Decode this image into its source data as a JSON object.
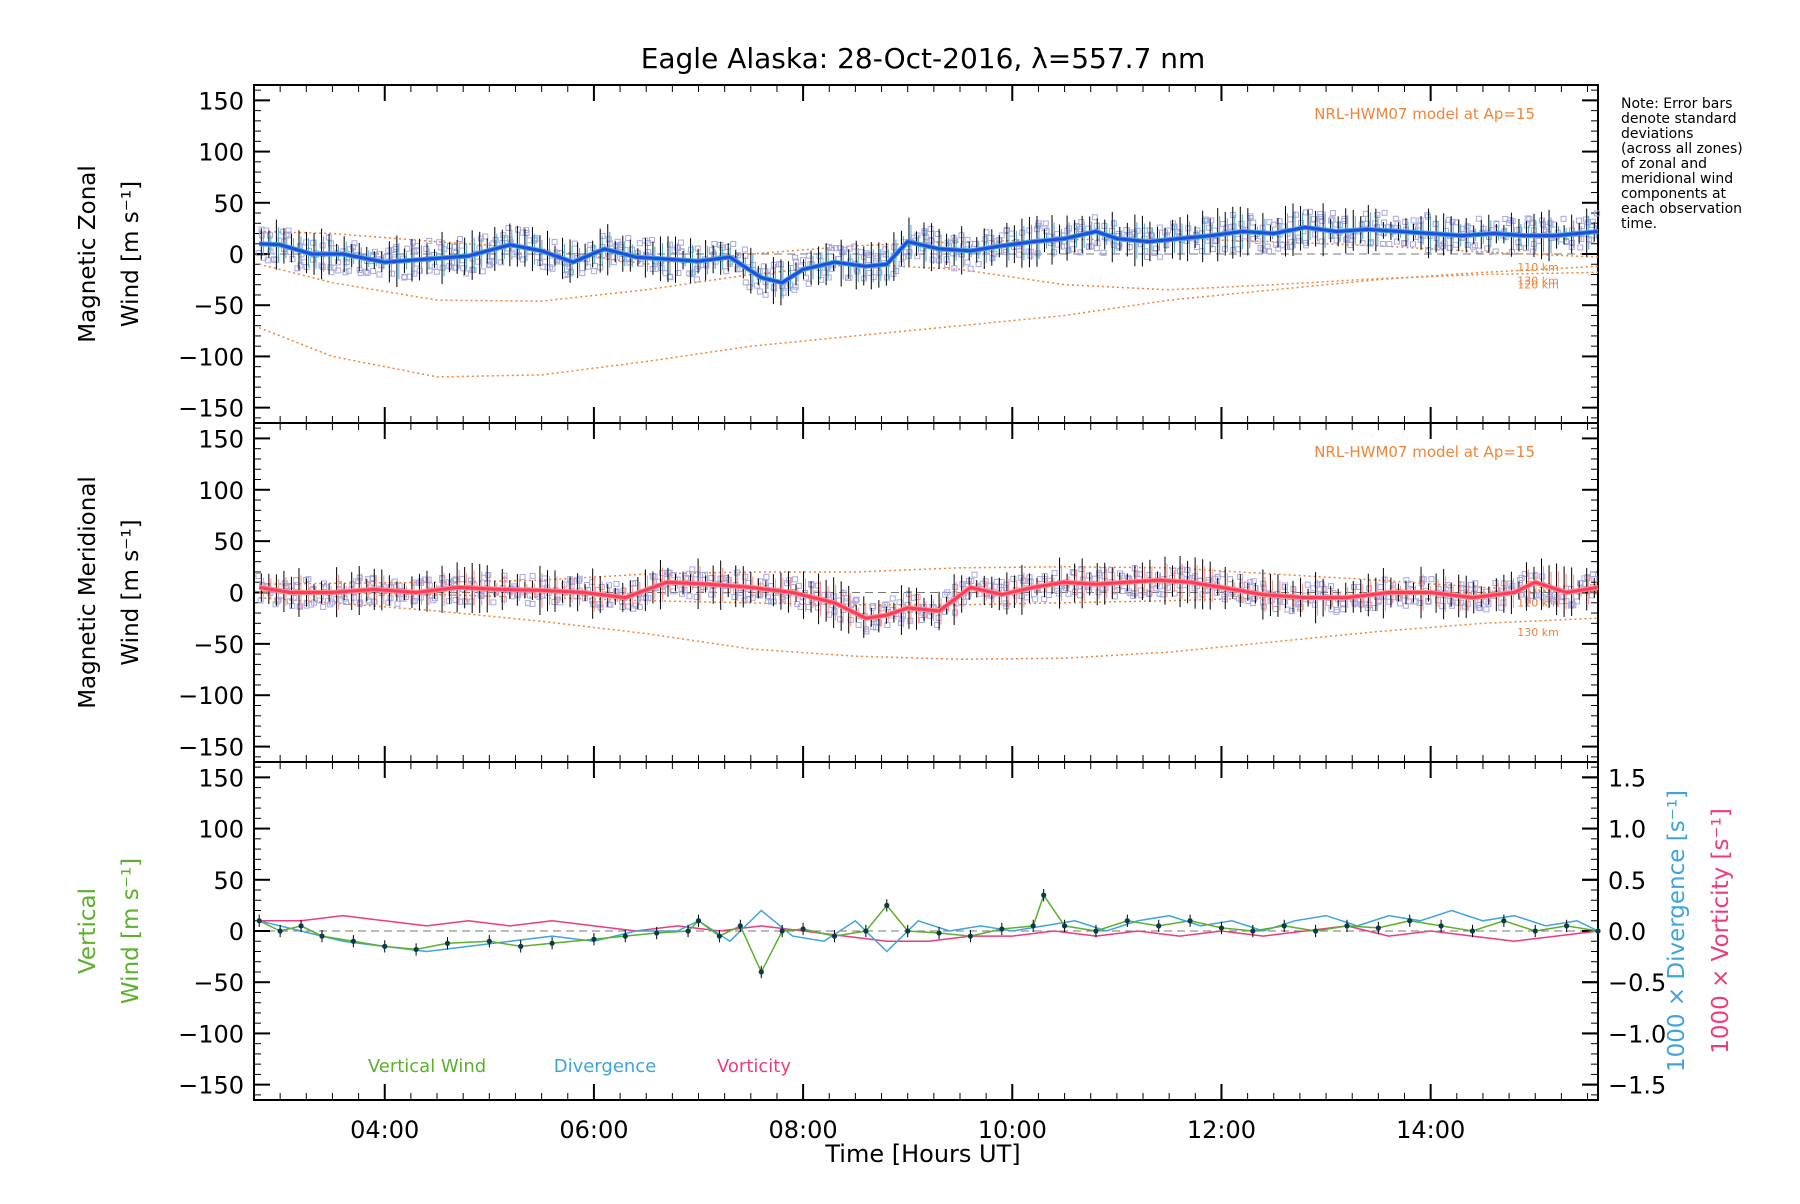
{
  "chart_data": {
    "type": "line",
    "title": "Eagle Alaska: 28-Oct-2016, λ=557.7 nm",
    "xlabel": "Time [Hours UT]",
    "x_ticks": [
      "04:00",
      "06:00",
      "08:00",
      "10:00",
      "12:00",
      "14:00"
    ],
    "x_range_hours": [
      2.75,
      15.6
    ],
    "note": "Note: Error bars denote standard deviations (across all zones) of zonal and meridional wind components at each observation time.",
    "note_lines": [
      "Note: Error bars",
      "denote standard",
      "deviations",
      "(across all zones)",
      "of zonal and",
      "meridional wind",
      "components at",
      "each observation",
      "time."
    ],
    "colors": {
      "zonal": "#1a4fe0",
      "zonal_light": "#4aa3df",
      "meridional": "#ff3b5c",
      "meridional_light": "#ff8a8a",
      "model": "#f0843a",
      "scatter": "#a8a8e0",
      "vertical": "#5cb02b",
      "divergence": "#3fa4dc",
      "vorticity": "#ee3b7f",
      "error_bar": "#000000"
    },
    "panels": [
      {
        "id": "zonal",
        "ylabel_line1": "Magnetic Zonal",
        "ylabel_line2": "Wind [m s⁻¹]",
        "ylim": [
          -165,
          165
        ],
        "y_ticks": [
          "150",
          "100",
          "50",
          "0",
          "−50",
          "−100",
          "−150"
        ],
        "model_label": "NRL-HWM07 model at Ap=15",
        "model_altitudes": [
          "110 km",
          "120 km",
          "130 km"
        ],
        "series": [
          {
            "role": "wind",
            "x": [
              2.8,
              3.0,
              3.3,
              3.6,
              4.0,
              4.4,
              4.8,
              5.2,
              5.5,
              5.8,
              6.1,
              6.4,
              6.7,
              7.0,
              7.3,
              7.6,
              7.8,
              8.0,
              8.3,
              8.6,
              8.8,
              9.0,
              9.3,
              9.6,
              9.9,
              10.2,
              10.5,
              10.8,
              11.0,
              11.3,
              11.6,
              11.9,
              12.2,
              12.5,
              12.8,
              13.1,
              13.4,
              13.7,
              14.0,
              14.3,
              14.6,
              14.9,
              15.2,
              15.6
            ],
            "y": [
              10,
              9,
              0,
              0,
              -8,
              -5,
              -2,
              9,
              3,
              -8,
              5,
              -3,
              -5,
              -7,
              -3,
              -23,
              -28,
              -15,
              -8,
              -12,
              -10,
              12,
              5,
              3,
              8,
              12,
              15,
              22,
              15,
              12,
              15,
              18,
              22,
              20,
              26,
              22,
              24,
              22,
              20,
              18,
              20,
              18,
              18,
              22
            ]
          }
        ],
        "model_curves": [
          {
            "x": [
              2.8,
              3.5,
              4.5,
              5.5,
              6.5,
              7.5,
              8.5,
              9.5,
              10.5,
              11.5,
              12.5,
              13.5,
              14.5,
              15.6
            ],
            "y": [
              22,
              20,
              12,
              5,
              -10,
              0,
              8,
              12,
              14,
              15,
              12,
              8,
              2,
              -3
            ]
          },
          {
            "x": [
              2.8,
              3.5,
              4.5,
              5.5,
              6.5,
              7.5,
              8.5,
              9.5,
              10.5,
              11.5,
              12.5,
              13.5,
              14.5,
              15.6
            ],
            "y": [
              -10,
              -28,
              -45,
              -46,
              -35,
              -20,
              -10,
              -15,
              -30,
              -35,
              -30,
              -24,
              -20,
              -18
            ]
          },
          {
            "x": [
              2.8,
              3.5,
              4.5,
              5.5,
              6.5,
              7.5,
              8.5,
              9.5,
              10.5,
              11.5,
              12.5,
              13.5,
              14.5,
              15.6
            ],
            "y": [
              -72,
              -100,
              -120,
              -118,
              -105,
              -90,
              -80,
              -70,
              -60,
              -45,
              -35,
              -25,
              -18,
              -12
            ]
          }
        ]
      },
      {
        "id": "meridional",
        "ylabel_line1": "Magnetic Meridional",
        "ylabel_line2": "Wind [m s⁻¹]",
        "ylim": [
          -165,
          165
        ],
        "y_ticks": [
          "150",
          "100",
          "50",
          "0",
          "−50",
          "−100",
          "−150"
        ],
        "model_label": "NRL-HWM07 model at Ap=15",
        "model_altitudes": [
          "110 km",
          "120 km",
          "130 km"
        ],
        "series": [
          {
            "role": "wind",
            "x": [
              2.8,
              3.1,
              3.5,
              3.9,
              4.3,
              4.7,
              5.1,
              5.5,
              5.9,
              6.3,
              6.7,
              7.1,
              7.5,
              7.9,
              8.3,
              8.6,
              8.8,
              9.0,
              9.3,
              9.6,
              9.9,
              10.2,
              10.5,
              10.8,
              11.1,
              11.4,
              11.7,
              12.0,
              12.4,
              12.8,
              13.2,
              13.6,
              14.0,
              14.4,
              14.8,
              15.0,
              15.3,
              15.6
            ],
            "y": [
              5,
              0,
              0,
              3,
              0,
              5,
              3,
              2,
              0,
              -5,
              10,
              8,
              5,
              0,
              -10,
              -25,
              -22,
              -15,
              -18,
              5,
              -2,
              5,
              10,
              8,
              10,
              12,
              10,
              5,
              -2,
              -5,
              -5,
              0,
              0,
              -5,
              0,
              10,
              0,
              5
            ]
          }
        ],
        "model_curves": [
          {
            "x": [
              2.8,
              3.5,
              4.5,
              5.5,
              6.5,
              7.5,
              8.5,
              9.5,
              10.5,
              11.5,
              12.5,
              13.5,
              14.5,
              15.6
            ],
            "y": [
              8,
              9,
              10,
              12,
              18,
              20,
              20,
              24,
              25,
              24,
              18,
              12,
              5,
              0
            ]
          },
          {
            "x": [
              2.8,
              3.5,
              4.5,
              5.5,
              6.5,
              7.5,
              8.5,
              9.5,
              10.5,
              11.5,
              12.5,
              13.5,
              14.5,
              15.6
            ],
            "y": [
              0,
              0,
              -2,
              -5,
              -8,
              -10,
              -12,
              -12,
              -10,
              -8,
              -5,
              -2,
              0,
              2
            ]
          },
          {
            "x": [
              2.8,
              3.5,
              4.5,
              5.5,
              6.5,
              7.5,
              8.5,
              9.5,
              10.5,
              11.5,
              12.5,
              13.5,
              14.5,
              15.6
            ],
            "y": [
              -5,
              -10,
              -18,
              -28,
              -40,
              -55,
              -62,
              -65,
              -64,
              -58,
              -48,
              -38,
              -30,
              -25
            ]
          }
        ]
      },
      {
        "id": "vertical",
        "ylabel_line1": "Vertical",
        "ylabel_line2": "Wind [m s⁻¹]",
        "ylim": [
          -165,
          165
        ],
        "y_ticks": [
          "150",
          "100",
          "50",
          "0",
          "−50",
          "−100",
          "−150"
        ],
        "y2_ticks": [
          "1.5",
          "1.0",
          "0.5",
          "0.0",
          "−0.5",
          "−1.0",
          "−1.5"
        ],
        "y2label_divergence": "1000 × Divergence [s⁻¹]",
        "y2label_vorticity": "1000 × Vorticity [s⁻¹]",
        "legend": [
          "Vertical Wind",
          "Divergence",
          "Vorticity"
        ],
        "series": [
          {
            "name": "Vertical Wind",
            "x": [
              2.8,
              3.0,
              3.2,
              3.4,
              3.7,
              4.0,
              4.3,
              4.6,
              5.0,
              5.3,
              5.6,
              6.0,
              6.3,
              6.6,
              6.9,
              7.0,
              7.2,
              7.4,
              7.6,
              7.8,
              8.0,
              8.3,
              8.6,
              8.8,
              9.0,
              9.3,
              9.6,
              9.9,
              10.2,
              10.3,
              10.5,
              10.8,
              11.1,
              11.4,
              11.7,
              12.0,
              12.3,
              12.6,
              12.9,
              13.2,
              13.5,
              13.8,
              14.1,
              14.4,
              14.7,
              15.0,
              15.3,
              15.6
            ],
            "y": [
              10,
              0,
              5,
              -5,
              -10,
              -15,
              -18,
              -12,
              -10,
              -15,
              -12,
              -8,
              -5,
              -2,
              0,
              10,
              -5,
              5,
              -40,
              0,
              2,
              -5,
              0,
              25,
              0,
              -2,
              -5,
              2,
              5,
              35,
              5,
              0,
              10,
              5,
              10,
              3,
              0,
              5,
              0,
              5,
              3,
              10,
              5,
              0,
              10,
              0,
              5,
              0
            ]
          },
          {
            "name": "Divergence",
            "x": [
              2.8,
              3.2,
              3.6,
              4.0,
              4.4,
              4.8,
              5.2,
              5.6,
              6.0,
              6.4,
              6.8,
              7.0,
              7.3,
              7.6,
              7.9,
              8.2,
              8.5,
              8.8,
              9.1,
              9.4,
              9.7,
              10.0,
              10.3,
              10.6,
              10.9,
              11.2,
              11.5,
              11.8,
              12.1,
              12.4,
              12.7,
              13.0,
              13.3,
              13.6,
              13.9,
              14.2,
              14.5,
              14.8,
              15.1,
              15.4,
              15.6
            ],
            "y": [
              0.1,
              0.0,
              -0.1,
              -0.15,
              -0.2,
              -0.15,
              -0.1,
              -0.05,
              -0.1,
              0.0,
              0.0,
              0.1,
              -0.1,
              0.2,
              -0.05,
              -0.1,
              0.1,
              -0.2,
              0.1,
              0.0,
              0.05,
              0.0,
              0.05,
              0.1,
              0.0,
              0.1,
              0.15,
              0.05,
              0.1,
              0.0,
              0.1,
              0.15,
              0.05,
              0.15,
              0.1,
              0.2,
              0.1,
              0.15,
              0.05,
              0.1,
              0.0
            ]
          },
          {
            "name": "Vorticity",
            "x": [
              2.8,
              3.2,
              3.6,
              4.0,
              4.4,
              4.8,
              5.2,
              5.6,
              6.0,
              6.4,
              6.8,
              7.2,
              7.6,
              8.0,
              8.4,
              8.8,
              9.2,
              9.6,
              10.0,
              10.4,
              10.8,
              11.2,
              11.6,
              12.0,
              12.4,
              12.8,
              13.2,
              13.6,
              14.0,
              14.4,
              14.8,
              15.2,
              15.6
            ],
            "y": [
              0.1,
              0.1,
              0.15,
              0.1,
              0.05,
              0.1,
              0.05,
              0.1,
              0.05,
              0.0,
              0.05,
              0.0,
              0.05,
              0.0,
              -0.05,
              -0.1,
              -0.1,
              -0.05,
              -0.05,
              0.0,
              -0.05,
              0.0,
              -0.05,
              0.0,
              -0.05,
              0.0,
              0.05,
              -0.05,
              0.0,
              -0.05,
              -0.1,
              -0.05,
              0.0
            ]
          }
        ]
      }
    ]
  }
}
